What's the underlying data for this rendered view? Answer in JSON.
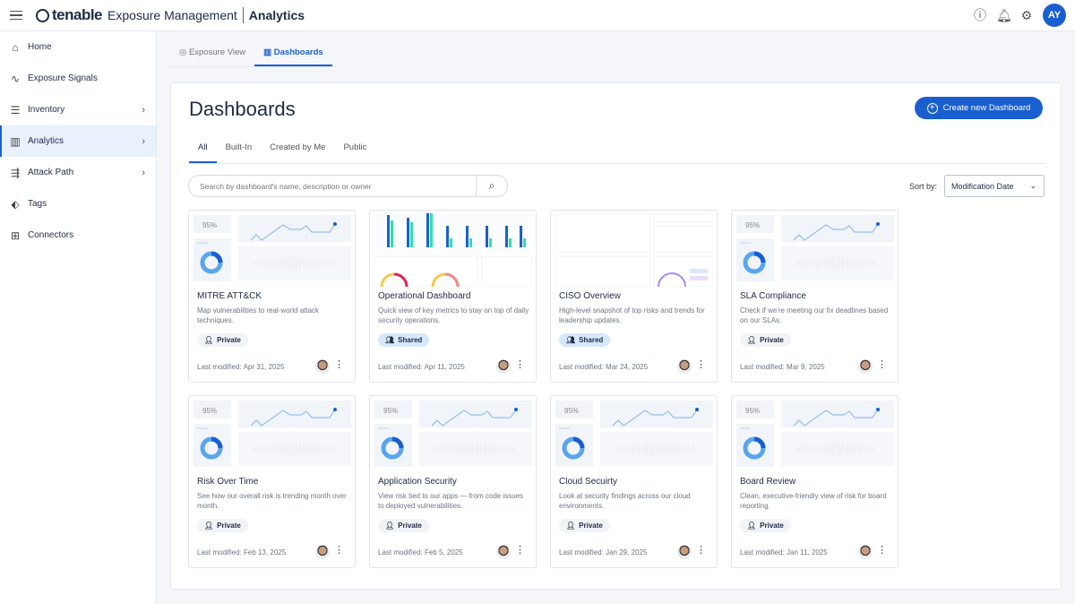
{
  "header": {
    "brand": "tenable",
    "product": "Exposure Management",
    "module": "Analytics",
    "user_initials": "AY"
  },
  "sidebar": {
    "items": [
      {
        "label": "Home",
        "icon": "home-icon",
        "glyph": "⌂"
      },
      {
        "label": "Exposure Signals",
        "icon": "signal-icon",
        "glyph": "∿"
      },
      {
        "label": "Inventory",
        "icon": "inventory-icon",
        "glyph": "☰",
        "chevron": "›"
      },
      {
        "label": "Analytics",
        "icon": "analytics-icon",
        "glyph": "▥",
        "chevron": "›",
        "active": true
      },
      {
        "label": "Attack Path",
        "icon": "attack-path-icon",
        "glyph": "⇶",
        "chevron": "›"
      },
      {
        "label": "Tags",
        "icon": "tag-icon",
        "glyph": "⬖"
      },
      {
        "label": "Connectors",
        "icon": "connectors-icon",
        "glyph": "⊞"
      }
    ]
  },
  "top_tabs": [
    {
      "label": "Exposure View",
      "icon": "eye-icon"
    },
    {
      "label": "Dashboards",
      "icon": "bar-chart-icon",
      "active": true
    }
  ],
  "main": {
    "title": "Dashboards",
    "create_label": "Create new Dashboard",
    "tabs": [
      "All",
      "Built-In",
      "Created by Me",
      "Public"
    ],
    "search_placeholder": "Search by dashboard's name, description or owner",
    "sort_label": "Sort by:",
    "sort_value": "Modification Date"
  },
  "thumbnail_stat": "95%",
  "cards": [
    {
      "title": "MITRE ATT&CK",
      "desc": "Map vulnerabilities to real-world attack techniques.",
      "visibility": "Private",
      "modified": "Last modified: Apr 31, 2025",
      "thumb": "generic"
    },
    {
      "title": "Operational Dashboard",
      "desc": "Quick view of key metrics to stay on top of daily security operations.",
      "visibility": "Shared",
      "modified": "Last modified: Apr 11, 2025",
      "thumb": "operational"
    },
    {
      "title": "CISO Overview",
      "desc": "High-level snapshot of top risks and trends for leadership updates.",
      "visibility": "Shared",
      "modified": "Last modified: Mar 24, 2025",
      "thumb": "ciso"
    },
    {
      "title": "SLA Compliance",
      "desc": "Check if we're meeting our fix deadlines based on our SLAs.",
      "visibility": "Private",
      "modified": "Last modified: Mar 9, 2025",
      "thumb": "generic"
    },
    {
      "title": "Risk Over Time",
      "desc": "See how our overall risk is trending month over month.",
      "visibility": "Private",
      "modified": "Last modified: Feb 13, 2025",
      "thumb": "generic"
    },
    {
      "title": "Application Security",
      "desc": "View risk tied to our apps — from code issues to deployed vulnerabilities.",
      "visibility": "Private",
      "modified": "Last modified: Feb 5, 2025",
      "thumb": "generic"
    },
    {
      "title": "Cloud Secuirty",
      "desc": "Look at security findings across our cloud environments.",
      "visibility": "Private",
      "modified": "Last modified: Jan 29, 2025",
      "thumb": "generic"
    },
    {
      "title": "Board Review",
      "desc": "Clean, executive-friendly view of risk for board reporting.",
      "visibility": "Private",
      "modified": "Last modified: Jan 11, 2025",
      "thumb": "generic"
    }
  ],
  "colors": {
    "accent": "#1a5fd0",
    "shared_badge": "#d6e8fb",
    "teal": "#2ee0a8"
  }
}
